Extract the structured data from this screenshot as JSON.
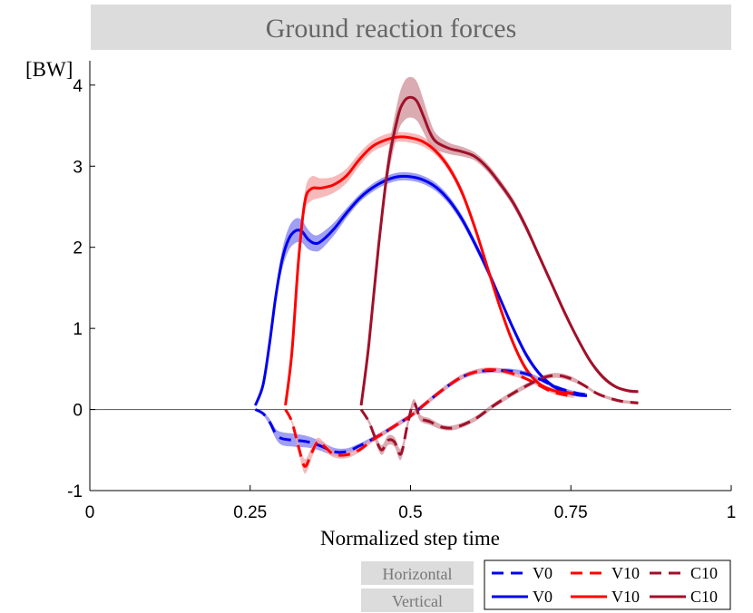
{
  "chart_data": {
    "type": "line",
    "title": "Ground reaction forces",
    "ylabel": "[BW]",
    "xlabel": "Normalized step time",
    "xlim": [
      0,
      1
    ],
    "ylim": [
      -1,
      4.3
    ],
    "xticks": [
      0,
      0.25,
      0.5,
      0.75,
      1
    ],
    "xtick_labels": [
      "0",
      "0.25",
      "0.5",
      "0.75",
      "1"
    ],
    "yticks": [
      -1,
      0,
      1,
      2,
      3,
      4
    ],
    "ytick_labels": [
      "-1",
      "0",
      "1",
      "2",
      "3",
      "4"
    ],
    "zero_line": true,
    "legend": {
      "placement": "bottom-right",
      "row_tags": [
        "Horizontal",
        "Vertical"
      ],
      "entries": [
        {
          "label": "V0",
          "series": "V0 Horizontal"
        },
        {
          "label": "V10",
          "series": "V10 Horizontal"
        },
        {
          "label": "C10",
          "series": "C10 Horizontal"
        },
        {
          "label": "V0",
          "series": "V0 Vertical"
        },
        {
          "label": "V10",
          "series": "V10 Vertical"
        },
        {
          "label": "C10",
          "series": "C10 Vertical"
        }
      ]
    },
    "series": [
      {
        "name": "V0 Vertical",
        "condition": "V0",
        "component": "Vertical",
        "color": "#0000ee",
        "band_color": "#7f7ff0",
        "dashed": false,
        "x": [
          0.258,
          0.27,
          0.28,
          0.29,
          0.3,
          0.31,
          0.32,
          0.33,
          0.34,
          0.35,
          0.36,
          0.38,
          0.4,
          0.42,
          0.44,
          0.46,
          0.48,
          0.5,
          0.52,
          0.54,
          0.56,
          0.58,
          0.6,
          0.62,
          0.64,
          0.66,
          0.68,
          0.7,
          0.72,
          0.74,
          0.76,
          0.775
        ],
        "y": [
          0.05,
          0.3,
          0.8,
          1.4,
          1.85,
          2.1,
          2.2,
          2.2,
          2.1,
          2.05,
          2.07,
          2.22,
          2.42,
          2.6,
          2.73,
          2.82,
          2.87,
          2.87,
          2.83,
          2.74,
          2.58,
          2.35,
          2.05,
          1.72,
          1.36,
          1.0,
          0.68,
          0.45,
          0.3,
          0.22,
          0.18,
          0.17
        ],
        "band": [
          0.02,
          0.03,
          0.05,
          0.08,
          0.12,
          0.14,
          0.15,
          0.14,
          0.12,
          0.1,
          0.1,
          0.08,
          0.06,
          0.05,
          0.05,
          0.05,
          0.05,
          0.05,
          0.05,
          0.05,
          0.05,
          0.05,
          0.05,
          0.05,
          0.04,
          0.04,
          0.04,
          0.03,
          0.03,
          0.03,
          0.02,
          0.02
        ]
      },
      {
        "name": "V10 Vertical",
        "condition": "V10",
        "component": "Vertical",
        "color": "#ff0000",
        "band_color": "#f4a3a3",
        "dashed": false,
        "x": [
          0.305,
          0.315,
          0.325,
          0.335,
          0.345,
          0.36,
          0.38,
          0.4,
          0.42,
          0.44,
          0.46,
          0.48,
          0.5,
          0.52,
          0.54,
          0.56,
          0.58,
          0.6,
          0.62,
          0.64,
          0.66,
          0.68,
          0.7,
          0.72,
          0.74,
          0.755
        ],
        "y": [
          0.05,
          0.7,
          1.8,
          2.55,
          2.72,
          2.73,
          2.77,
          2.88,
          3.08,
          3.24,
          3.32,
          3.36,
          3.35,
          3.3,
          3.18,
          2.98,
          2.68,
          2.25,
          1.75,
          1.25,
          0.82,
          0.5,
          0.32,
          0.24,
          0.21,
          0.2
        ],
        "band": [
          0.02,
          0.05,
          0.08,
          0.12,
          0.15,
          0.12,
          0.1,
          0.09,
          0.08,
          0.07,
          0.07,
          0.06,
          0.06,
          0.06,
          0.05,
          0.05,
          0.05,
          0.05,
          0.05,
          0.04,
          0.04,
          0.04,
          0.03,
          0.03,
          0.02,
          0.02
        ]
      },
      {
        "name": "C10 Vertical",
        "condition": "C10",
        "component": "Vertical",
        "color": "#a0102a",
        "band_color": "#cf8f98",
        "dashed": false,
        "x": [
          0.423,
          0.435,
          0.45,
          0.465,
          0.48,
          0.49,
          0.5,
          0.51,
          0.52,
          0.53,
          0.54,
          0.56,
          0.58,
          0.6,
          0.62,
          0.64,
          0.66,
          0.68,
          0.7,
          0.72,
          0.74,
          0.76,
          0.78,
          0.8,
          0.82,
          0.84,
          0.855
        ],
        "y": [
          0.05,
          0.8,
          2.0,
          3.0,
          3.6,
          3.8,
          3.85,
          3.8,
          3.62,
          3.42,
          3.3,
          3.22,
          3.18,
          3.12,
          2.98,
          2.78,
          2.55,
          2.25,
          1.9,
          1.55,
          1.2,
          0.88,
          0.6,
          0.4,
          0.28,
          0.23,
          0.22
        ],
        "band": [
          0.02,
          0.05,
          0.1,
          0.15,
          0.2,
          0.24,
          0.25,
          0.24,
          0.2,
          0.15,
          0.1,
          0.07,
          0.06,
          0.05,
          0.05,
          0.05,
          0.05,
          0.05,
          0.04,
          0.04,
          0.04,
          0.03,
          0.03,
          0.03,
          0.02,
          0.02,
          0.02
        ]
      },
      {
        "name": "V0 Horizontal",
        "condition": "V0",
        "component": "Horizontal",
        "color": "#0000ee",
        "band_color": "#7f7ff0",
        "dashed": true,
        "x": [
          0.258,
          0.27,
          0.28,
          0.29,
          0.3,
          0.32,
          0.34,
          0.36,
          0.38,
          0.4,
          0.42,
          0.44,
          0.46,
          0.48,
          0.5,
          0.52,
          0.54,
          0.56,
          0.58,
          0.6,
          0.62,
          0.64,
          0.66,
          0.68,
          0.7,
          0.72,
          0.74,
          0.76,
          0.775
        ],
        "y": [
          0.0,
          -0.05,
          -0.15,
          -0.3,
          -0.36,
          -0.38,
          -0.4,
          -0.45,
          -0.52,
          -0.52,
          -0.45,
          -0.37,
          -0.28,
          -0.18,
          -0.08,
          0.05,
          0.18,
          0.3,
          0.4,
          0.46,
          0.48,
          0.48,
          0.47,
          0.44,
          0.38,
          0.3,
          0.24,
          0.2,
          0.18
        ],
        "band": [
          0.01,
          0.02,
          0.04,
          0.06,
          0.08,
          0.08,
          0.07,
          0.06,
          0.05,
          0.04,
          0.03,
          0.03,
          0.03,
          0.03,
          0.03,
          0.03,
          0.03,
          0.03,
          0.03,
          0.03,
          0.03,
          0.03,
          0.03,
          0.03,
          0.02,
          0.02,
          0.02,
          0.02,
          0.02
        ]
      },
      {
        "name": "V10 Horizontal",
        "condition": "V10",
        "component": "Horizontal",
        "color": "#ff0000",
        "band_color": "#f4a3a3",
        "dashed": true,
        "x": [
          0.305,
          0.315,
          0.325,
          0.335,
          0.345,
          0.355,
          0.365,
          0.38,
          0.4,
          0.42,
          0.44,
          0.46,
          0.48,
          0.5,
          0.52,
          0.54,
          0.56,
          0.58,
          0.6,
          0.62,
          0.64,
          0.66,
          0.68,
          0.7,
          0.72,
          0.74,
          0.755
        ],
        "y": [
          0.0,
          -0.15,
          -0.45,
          -0.7,
          -0.55,
          -0.4,
          -0.45,
          -0.55,
          -0.56,
          -0.5,
          -0.38,
          -0.28,
          -0.18,
          -0.08,
          0.05,
          0.18,
          0.3,
          0.4,
          0.46,
          0.49,
          0.48,
          0.44,
          0.38,
          0.3,
          0.22,
          0.18,
          0.16
        ],
        "band": [
          0.01,
          0.03,
          0.06,
          0.09,
          0.07,
          0.05,
          0.05,
          0.04,
          0.04,
          0.03,
          0.03,
          0.03,
          0.03,
          0.03,
          0.03,
          0.03,
          0.03,
          0.03,
          0.03,
          0.03,
          0.03,
          0.03,
          0.02,
          0.02,
          0.02,
          0.02,
          0.02
        ]
      },
      {
        "name": "C10 Horizontal",
        "condition": "C10",
        "component": "Horizontal",
        "color": "#a0102a",
        "band_color": "#cf8f98",
        "dashed": true,
        "x": [
          0.423,
          0.435,
          0.445,
          0.455,
          0.465,
          0.475,
          0.485,
          0.495,
          0.505,
          0.515,
          0.53,
          0.55,
          0.57,
          0.6,
          0.63,
          0.66,
          0.69,
          0.71,
          0.73,
          0.75,
          0.77,
          0.79,
          0.81,
          0.83,
          0.855
        ],
        "y": [
          0.0,
          -0.15,
          -0.35,
          -0.5,
          -0.38,
          -0.4,
          -0.55,
          -0.2,
          0.08,
          -0.1,
          -0.15,
          -0.22,
          -0.22,
          -0.12,
          0.05,
          0.2,
          0.33,
          0.4,
          0.42,
          0.38,
          0.3,
          0.2,
          0.14,
          0.1,
          0.08
        ],
        "band": [
          0.01,
          0.03,
          0.05,
          0.06,
          0.06,
          0.06,
          0.07,
          0.06,
          0.05,
          0.04,
          0.04,
          0.03,
          0.03,
          0.03,
          0.03,
          0.03,
          0.03,
          0.03,
          0.03,
          0.03,
          0.02,
          0.02,
          0.02,
          0.02,
          0.02
        ]
      }
    ]
  }
}
